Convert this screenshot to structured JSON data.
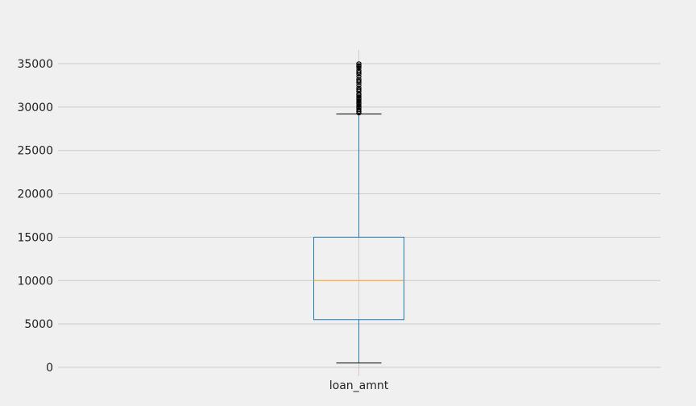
{
  "chart_data": {
    "type": "box",
    "title": "",
    "xlabel": "",
    "ylabel": "",
    "ylim": [
      -1000,
      38500
    ],
    "grid": true,
    "categories": [
      "loan_amnt"
    ],
    "y_ticks": [
      0,
      5000,
      10000,
      15000,
      20000,
      25000,
      30000,
      35000
    ],
    "boxes": [
      {
        "name": "loan_amnt",
        "whisker_low": 500,
        "q1": 5500,
        "median": 10000,
        "q3": 15000,
        "whisker_high": 29200,
        "outliers": [
          29300,
          29500,
          29700,
          29900,
          30000,
          30200,
          30400,
          30500,
          30700,
          30900,
          31000,
          31200,
          31400,
          31500,
          31800,
          32000,
          32200,
          32500,
          32800,
          33000,
          33200,
          33500,
          33800,
          34000,
          34200,
          34500,
          34700,
          34800,
          35000
        ]
      }
    ],
    "colors": {
      "background": "#f0f0f0",
      "grid": "#cbcbcb",
      "box": "#1f77b4",
      "median": "#ff9f1c",
      "whisker": "#1f77b4",
      "cap": "#000000",
      "outlier": "#000000"
    }
  }
}
